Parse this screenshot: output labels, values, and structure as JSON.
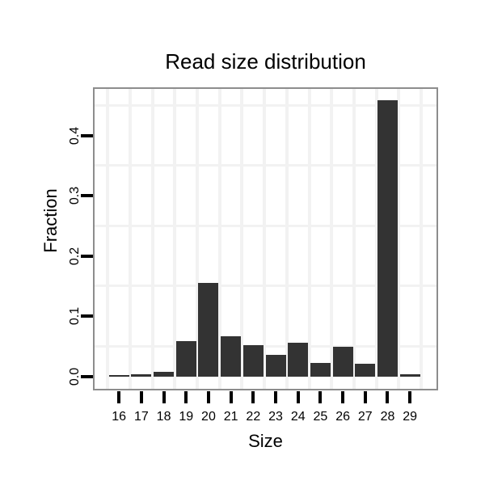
{
  "chart_data": {
    "type": "bar",
    "title": "Read size distribution",
    "xlabel": "Size",
    "ylabel": "Fraction",
    "categories": [
      16,
      17,
      18,
      19,
      20,
      21,
      22,
      23,
      24,
      25,
      26,
      27,
      28,
      29
    ],
    "values": [
      0.002,
      0.003,
      0.008,
      0.058,
      0.155,
      0.067,
      0.052,
      0.036,
      0.056,
      0.023,
      0.049,
      0.021,
      0.459,
      0.003
    ],
    "y_ticks": [
      0.0,
      0.1,
      0.2,
      0.3,
      0.4
    ],
    "y_tick_labels": [
      "0.0",
      "0.1",
      "0.2",
      "0.3",
      "0.4"
    ],
    "x_tick_labels": [
      "16",
      "17",
      "18",
      "19",
      "20",
      "21",
      "22",
      "23",
      "24",
      "25",
      "26",
      "27",
      "28",
      "29"
    ],
    "ylim": [
      -0.021,
      0.478
    ],
    "xlim": [
      14.9,
      30.2
    ],
    "grid": "minor gridlines only, no major gridlines visible",
    "minor_y_gridlines": [
      0.05,
      0.15,
      0.25,
      0.35,
      0.45
    ],
    "minor_x_gridlines": [
      15.5,
      16.5,
      17.5,
      18.5,
      19.5,
      20.5,
      21.5,
      22.5,
      23.5,
      24.5,
      25.5,
      26.5,
      27.5,
      28.5,
      29.5
    ],
    "legend": "none"
  },
  "colors": {
    "bar_fill": "#333333",
    "panel_border": "#8d8d8d",
    "panel_background": "#ffffff",
    "figure_background": "#ffffff",
    "grid_minor": "#f2f2f2",
    "tick": "#000000",
    "text": "#000000"
  }
}
